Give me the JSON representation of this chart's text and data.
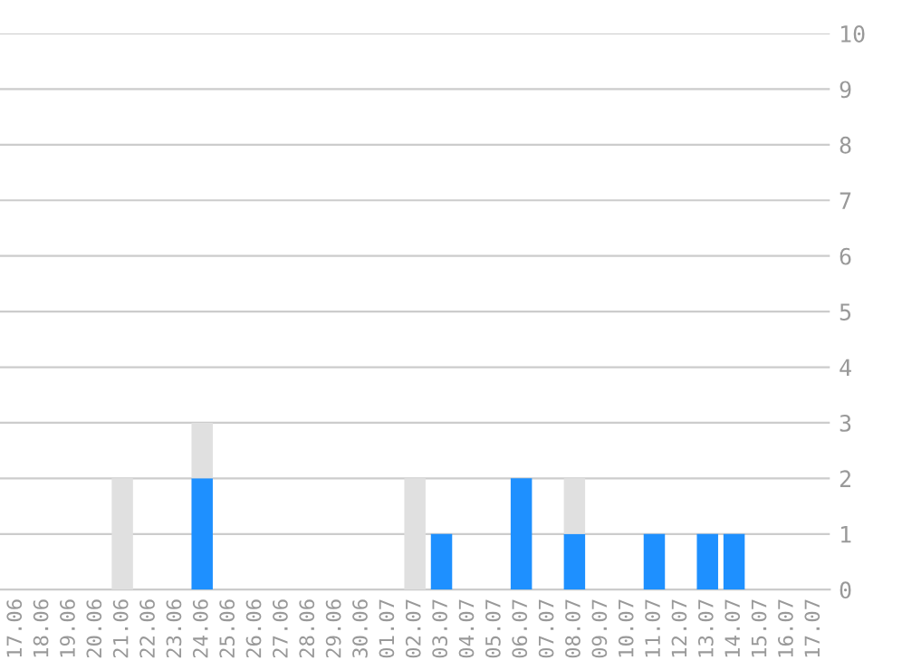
{
  "chart_data": {
    "type": "bar",
    "stacked": true,
    "categories": [
      "17.06",
      "18.06",
      "19.06",
      "20.06",
      "21.06",
      "22.06",
      "23.06",
      "24.06",
      "25.06",
      "26.06",
      "27.06",
      "28.06",
      "29.06",
      "30.06",
      "01.07",
      "02.07",
      "03.07",
      "04.07",
      "05.07",
      "06.07",
      "07.07",
      "08.07",
      "09.07",
      "10.07",
      "11.07",
      "12.07",
      "13.07",
      "14.07",
      "15.07",
      "16.07",
      "17.07"
    ],
    "series": [
      {
        "color": "#1e90ff",
        "values": [
          null,
          null,
          null,
          null,
          null,
          null,
          null,
          2,
          null,
          null,
          null,
          null,
          null,
          null,
          null,
          null,
          1,
          null,
          null,
          2,
          null,
          1,
          null,
          null,
          1,
          null,
          1,
          1,
          null,
          null,
          null
        ]
      },
      {
        "color": "#e0e0e0",
        "values": [
          null,
          null,
          null,
          null,
          2,
          null,
          null,
          1,
          null,
          null,
          null,
          null,
          null,
          null,
          null,
          2,
          null,
          null,
          null,
          null,
          null,
          1,
          null,
          null,
          null,
          null,
          null,
          null,
          null,
          null,
          null
        ]
      }
    ],
    "ylim": [
      0,
      10
    ],
    "yticks": [
      0,
      1,
      2,
      3,
      4,
      5,
      6,
      7,
      8,
      9,
      10
    ],
    "grid": "y",
    "legend": false
  }
}
